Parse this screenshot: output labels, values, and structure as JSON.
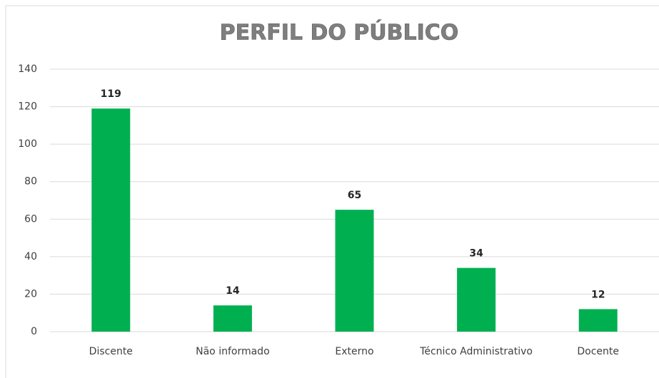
{
  "chart_data": {
    "type": "bar",
    "title": "PERFIL DO PÚBLICO",
    "categories": [
      "Discente",
      "Não informado",
      "Externo",
      "Técnico Administrativo",
      "Docente"
    ],
    "values": [
      119,
      14,
      65,
      34,
      12
    ],
    "color": "#00b050",
    "ylim": [
      0,
      140
    ],
    "yticks": [
      0,
      20,
      40,
      60,
      80,
      100,
      120,
      140
    ],
    "grid": true
  }
}
